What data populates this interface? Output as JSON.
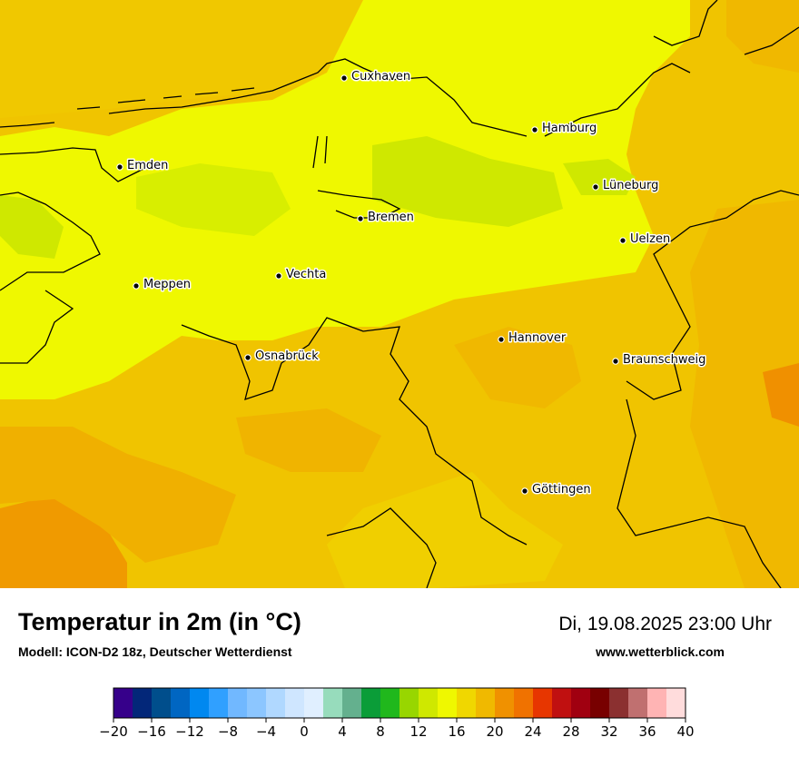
{
  "title": "Temperatur in 2m (in °C)",
  "model": "Modell: ICON-D2 18z, Deutscher Wetterdienst",
  "datetime": "Di, 19.08.2025 23:00 Uhr",
  "website": "www.wetterblick.com",
  "cities": [
    {
      "name": "Cuxhaven"
    },
    {
      "name": "Hamburg"
    },
    {
      "name": "Emden"
    },
    {
      "name": "Lüneburg"
    },
    {
      "name": "Bremen"
    },
    {
      "name": "Uelzen"
    },
    {
      "name": "Vechta"
    },
    {
      "name": "Meppen"
    },
    {
      "name": "Hannover"
    },
    {
      "name": "Osnabrück"
    },
    {
      "name": "Braunschweig"
    },
    {
      "name": "Göttingen"
    }
  ],
  "legend": {
    "colors": [
      "#36008a",
      "#032779",
      "#004e8c",
      "#0066c2",
      "#0088f0",
      "#30a0ff",
      "#71b8ff",
      "#8cc6ff",
      "#b0d8ff",
      "#cfe6ff",
      "#e0efff",
      "#97dcbc",
      "#64b08e",
      "#0a9d38",
      "#20b81c",
      "#98d600",
      "#cfe800",
      "#eff800",
      "#f0d700",
      "#f0b900",
      "#f09100",
      "#f07200",
      "#e73600",
      "#c01010",
      "#a00010",
      "#780000",
      "#8b3030",
      "#c07070",
      "#ffb4b4",
      "#ffdcdc"
    ],
    "ticks": [
      "−20",
      "−16",
      "−12",
      "−8",
      "−4",
      "0",
      "4",
      "8",
      "12",
      "16",
      "20",
      "24",
      "28",
      "32",
      "36",
      "40"
    ]
  }
}
